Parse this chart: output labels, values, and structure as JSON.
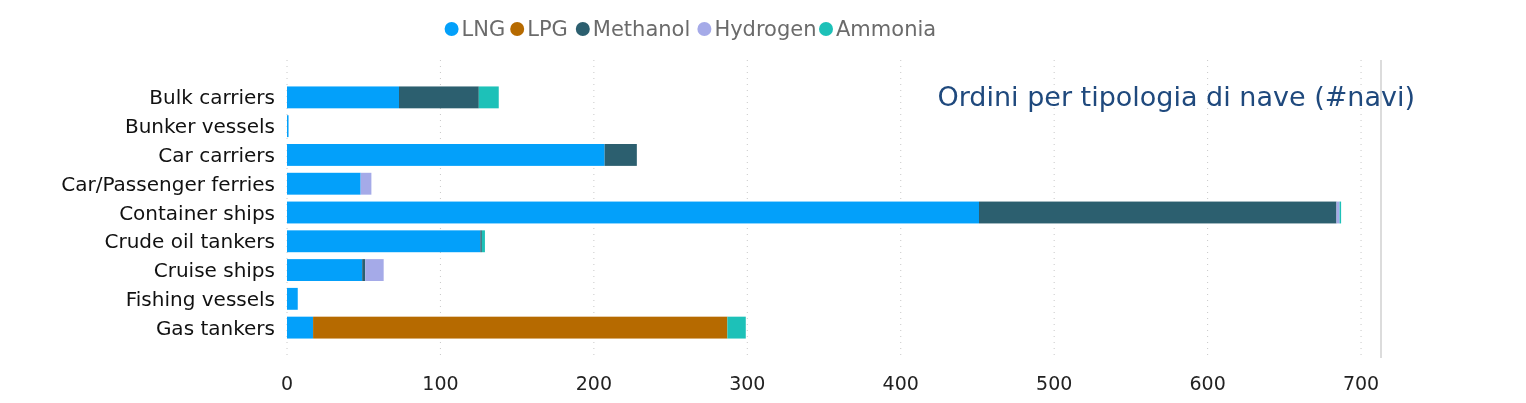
{
  "chart_data": {
    "type": "bar",
    "orientation": "horizontal",
    "stacked": true,
    "title": "Ordini per tipologia di nave (#navi)",
    "categories": [
      "Bulk carriers",
      "Bunker vessels",
      "Car carriers",
      "Car/Passenger ferries",
      "Container ships",
      "Crude oil tankers",
      "Cruise ships",
      "Fishing vessels",
      "Gas tankers"
    ],
    "series": [
      {
        "name": "LNG",
        "color": "#03a0fa",
        "values": [
          73,
          1,
          207,
          48,
          451,
          126,
          49,
          7,
          17
        ]
      },
      {
        "name": "LPG",
        "color": "#b66a00",
        "values": [
          null,
          null,
          null,
          null,
          null,
          null,
          null,
          null,
          270
        ]
      },
      {
        "name": "Methanol",
        "color": "#2c5f6f",
        "values": [
          52,
          null,
          21,
          null,
          233,
          1,
          2,
          null,
          null
        ]
      },
      {
        "name": "Hydrogen",
        "color": "#a5aae8",
        "values": [
          null,
          null,
          null,
          7,
          2,
          null,
          12,
          null,
          null
        ]
      },
      {
        "name": "Ammonia",
        "color": "#1dc1b8",
        "values": [
          13,
          null,
          null,
          null,
          1,
          2,
          null,
          null,
          12
        ]
      }
    ],
    "xlim": [
      0,
      713
    ],
    "xticks": [
      0,
      100,
      200,
      300,
      400,
      500,
      600,
      700
    ],
    "grid": "x",
    "legend": "top"
  }
}
